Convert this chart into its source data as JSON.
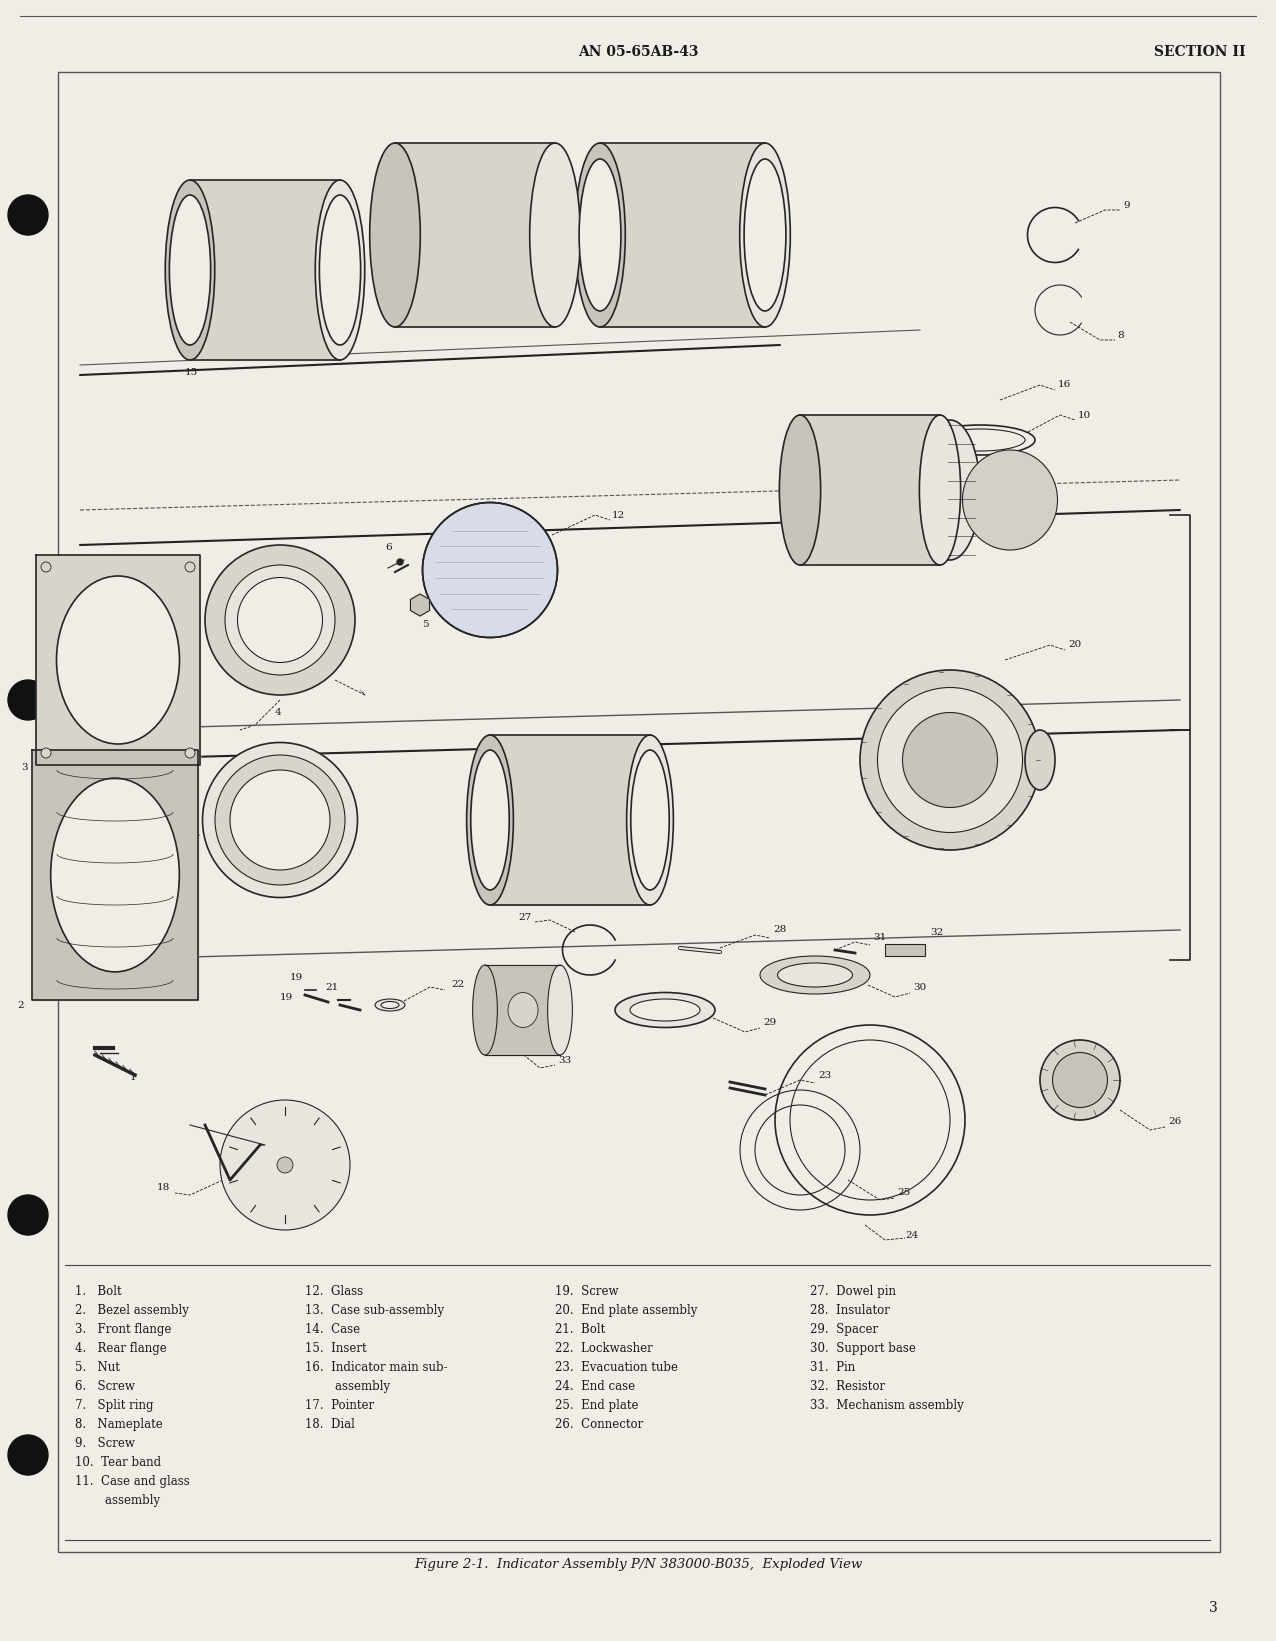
{
  "page_background": "#f0ede6",
  "border_color": "#444444",
  "text_color": "#1a1a1a",
  "header_left": "AN 05-65AB-43",
  "header_right": "SECTION II",
  "footer_text": "Figure 2-1.  Indicator Assembly P/N 383000-B035,  Exploded View",
  "page_number": "3",
  "legend_col1": [
    "1.   Bolt",
    "2.   Bezel assembly",
    "3.   Front flange",
    "4.   Rear flange",
    "5.   Nut",
    "6.   Screw",
    "7.   Split ring",
    "8.   Nameplate",
    "9.   Screw",
    "10.  Tear band",
    "11.  Case and glass",
    "        assembly"
  ],
  "legend_col2": [
    "12.  Glass",
    "13.  Case sub-assembly",
    "14.  Case",
    "15.  Insert",
    "16.  Indicator main sub-",
    "        assembly",
    "17.  Pointer",
    "18.  Dial"
  ],
  "legend_col3": [
    "19.  Screw",
    "20.  End plate assembly",
    "21.  Bolt",
    "22.  Lockwasher",
    "23.  Evacuation tube",
    "24.  End case",
    "25.  End plate",
    "26.  Connector"
  ],
  "legend_col4": [
    "27.  Dowel pin",
    "28.  Insulator",
    "29.  Spacer",
    "30.  Support base",
    "31.  Pin",
    "32.  Resistor",
    "33.  Mechanism assembly"
  ],
  "lfs": 8.5,
  "hfs": 10,
  "diagram_bg": "#f0ede6",
  "ink": "#252525",
  "fill_light": "#e8e5de",
  "fill_mid": "#d8d4cc",
  "fill_dark": "#c8c4bc"
}
